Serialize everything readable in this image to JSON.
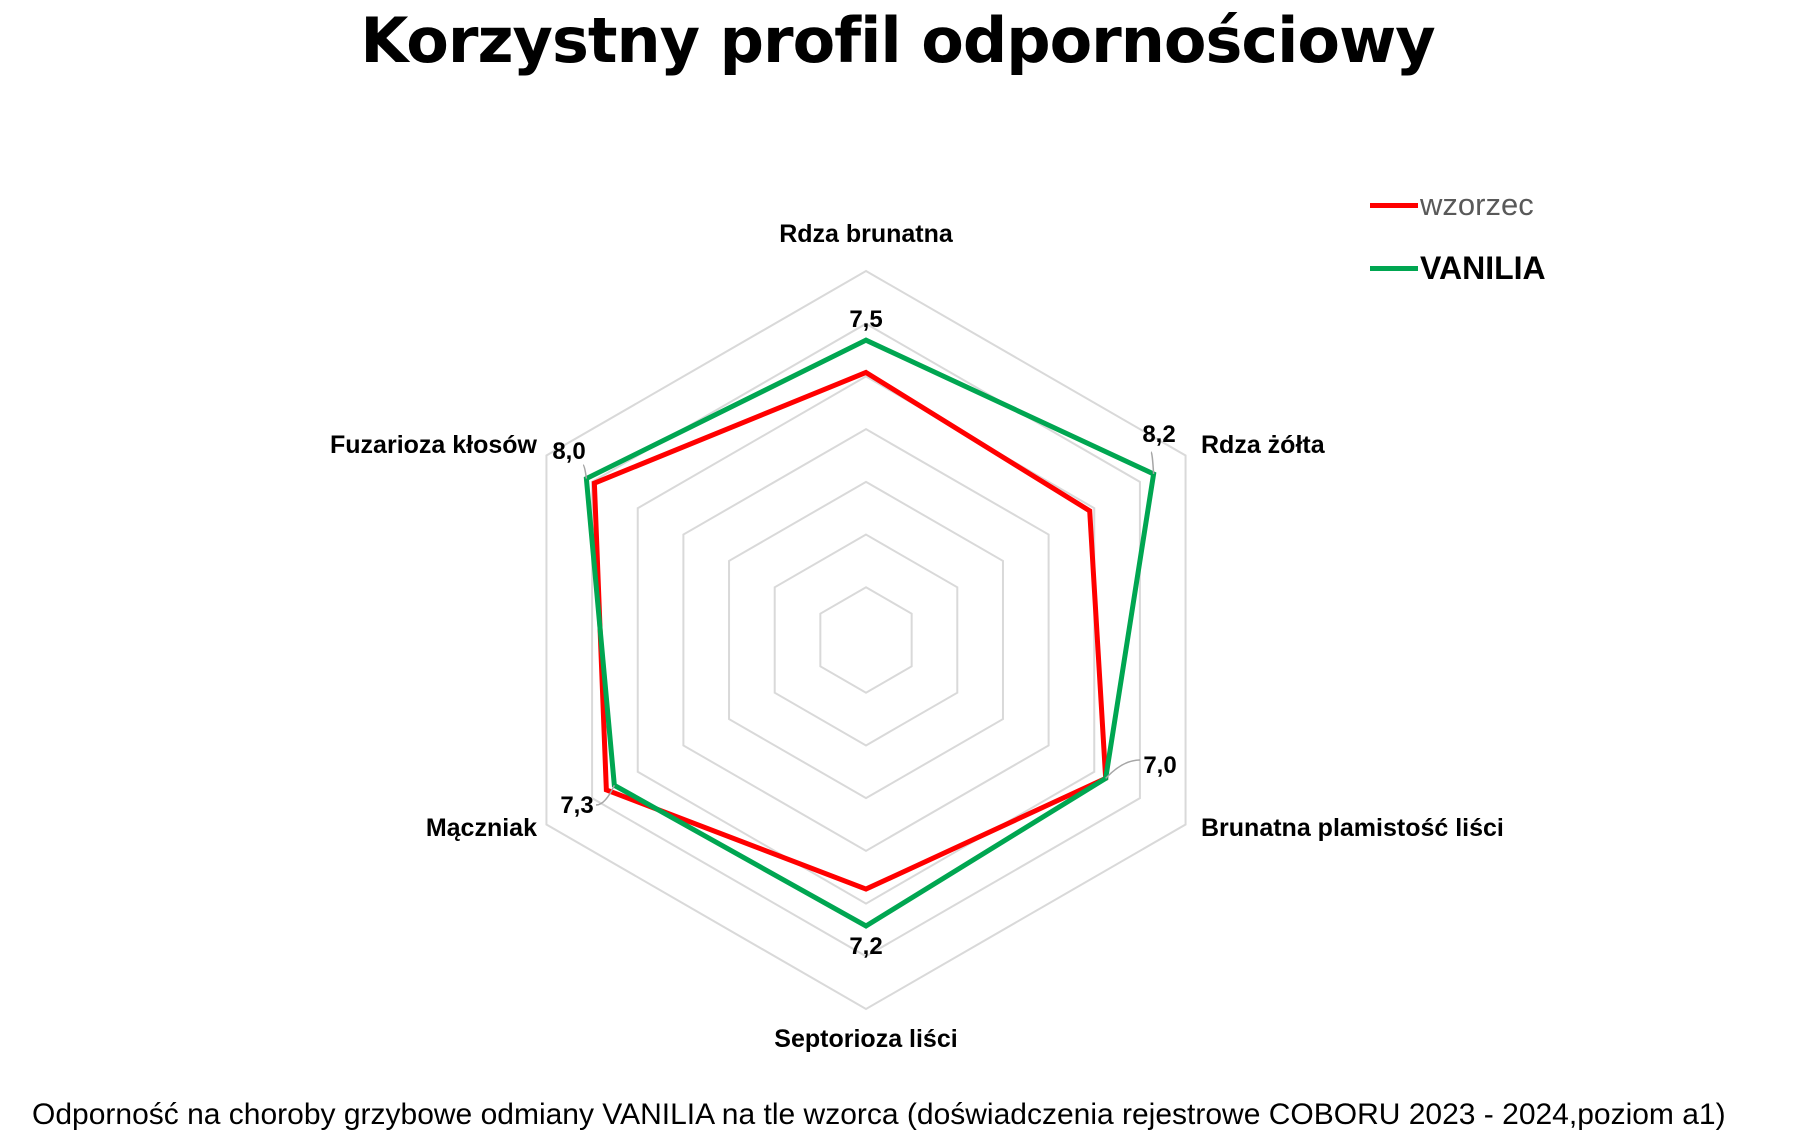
{
  "chart_data": {
    "type": "radar",
    "title": "Korzystny profil odpornościowy",
    "caption": "Odporność na choroby grzybowe odmiany VANILIA na tle wzorca (doświadczenia rejestrowe COBORU 2023 - 2024,poziom a1)",
    "axes": [
      "Rdza brunatna",
      "Rdza żółta",
      "Brunatna plamistość liści",
      "Septorioza liści",
      "Mączniak",
      "Fuzarioza kłosów"
    ],
    "range": [
      1,
      9
    ],
    "grid_levels": 7,
    "legend_position": "top-right",
    "series": [
      {
        "name": "wzorzec",
        "color": "#ff0000",
        "values": [
          6.8,
          6.6,
          7.0,
          6.4,
          7.5,
          7.8
        ]
      },
      {
        "name": "VANILIA",
        "color": "#00a651",
        "values": [
          7.5,
          8.2,
          7.0,
          7.2,
          7.3,
          8.0
        ],
        "data_labels": [
          "7,5",
          "8,2",
          "7,0",
          "7,2",
          "7,3",
          "8,0"
        ]
      }
    ]
  }
}
